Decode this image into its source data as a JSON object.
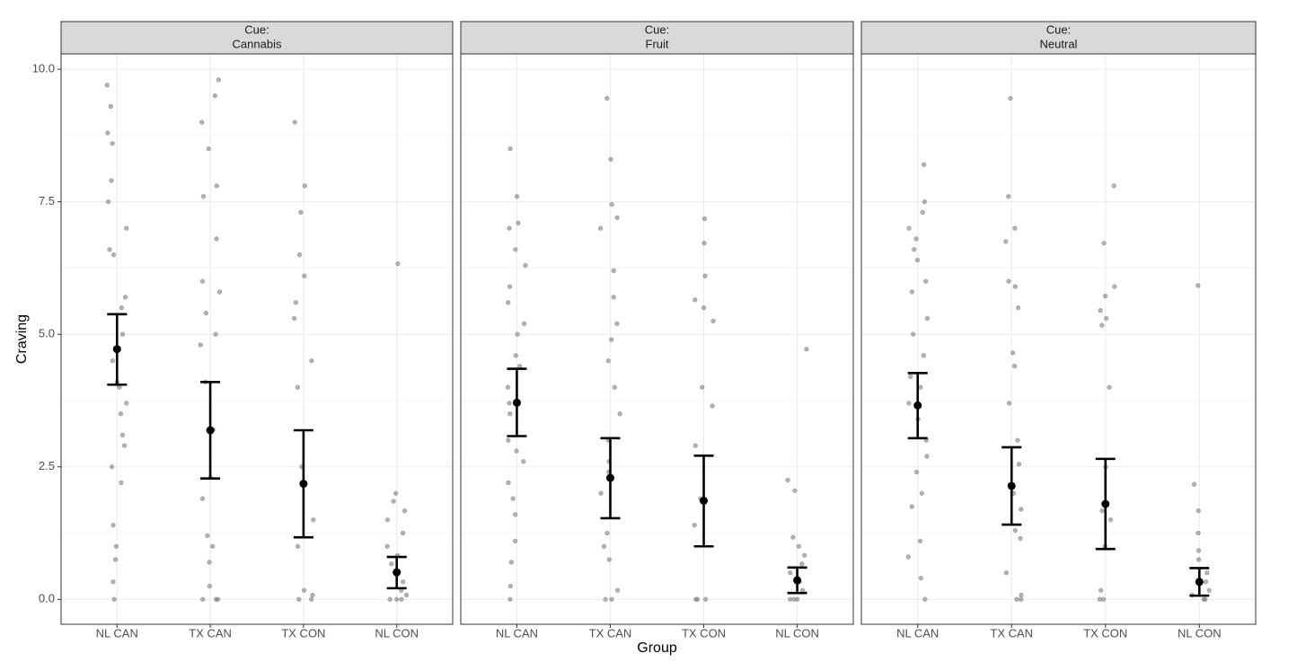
{
  "chart_data": [
    {
      "type": "strip",
      "facet_label": "Cue:",
      "facet_value": "Cannabis",
      "y_label": "Craving",
      "categories": [
        "NL CAN",
        "TX CAN",
        "TX CON",
        "NL CON"
      ],
      "points": [
        [
          9.7,
          9.3,
          8.8,
          8.6,
          7.9,
          7.5,
          7.0,
          6.6,
          6.5,
          5.7,
          5.5,
          5.0,
          4.7,
          4.5,
          4.1,
          4.0,
          3.7,
          3.5,
          3.1,
          2.9,
          2.5,
          2.2,
          1.4,
          1.0,
          0.75,
          0.33,
          0
        ],
        [
          9.8,
          9.5,
          9.0,
          8.5,
          7.8,
          7.6,
          6.8,
          6.0,
          5.8,
          5.4,
          5.0,
          4.8,
          4.1,
          3.2,
          2.3,
          1.9,
          1.2,
          1.0,
          0.7,
          0.25,
          0,
          0,
          0
        ],
        [
          9.0,
          7.8,
          7.3,
          6.5,
          6.1,
          5.6,
          5.3,
          4.5,
          4.0,
          2.5,
          1.5,
          1.0,
          0.17,
          0.08,
          0,
          0
        ],
        [
          6.33,
          2.0,
          1.85,
          1.67,
          1.5,
          1.25,
          1.0,
          0.83,
          0.67,
          0.5,
          0.33,
          0.17,
          0.08,
          0,
          0,
          0
        ]
      ],
      "means": [
        4.72,
        3.19,
        2.18,
        0.51
      ],
      "ci_low": [
        4.05,
        2.28,
        1.17,
        0.21
      ],
      "ci_high": [
        5.38,
        4.1,
        3.19,
        0.8
      ],
      "point_color": "#7f7f7f",
      "mean_color": "#000000",
      "ylim": [
        -0.47,
        10.29
      ],
      "yticks": [
        {
          "value": 0,
          "label": "0.0"
        },
        2.5,
        {
          "value": 5,
          "label": "5.0"
        },
        7.5,
        {
          "value": 10,
          "label": "10.0"
        }
      ],
      "minor_yticks": [
        1.25,
        3.75,
        6.25,
        8.75
      ],
      "grid": true,
      "show_y_axis": true
    },
    {
      "type": "strip",
      "facet_label": "Cue:",
      "facet_value": "Fruit",
      "x_label": "Group",
      "categories": [
        "NL CAN",
        "TX CAN",
        "TX CON",
        "NL CON"
      ],
      "points": [
        [
          8.5,
          7.6,
          7.1,
          7.0,
          6.6,
          6.3,
          5.9,
          5.6,
          5.2,
          5.0,
          4.6,
          4.4,
          4.0,
          3.7,
          3.5,
          3.0,
          2.8,
          2.6,
          2.2,
          1.9,
          1.6,
          1.1,
          0.7,
          0.25,
          0
        ],
        [
          9.45,
          8.3,
          7.45,
          7.2,
          7.0,
          6.2,
          5.7,
          5.2,
          4.9,
          4.5,
          4.0,
          3.5,
          3.0,
          2.6,
          2.4,
          2.0,
          1.25,
          1.0,
          0.75,
          0.17,
          0,
          0
        ],
        [
          7.18,
          6.72,
          6.1,
          5.65,
          5.5,
          5.25,
          4.0,
          3.65,
          2.9,
          1.9,
          1.4,
          0,
          0,
          0
        ],
        [
          4.72,
          2.25,
          2.05,
          1.17,
          1.0,
          0.83,
          0.67,
          0.5,
          0.33,
          0.17,
          0,
          0,
          0
        ]
      ],
      "means": [
        3.71,
        2.29,
        1.86,
        0.36
      ],
      "ci_low": [
        3.08,
        1.53,
        1.0,
        0.12
      ],
      "ci_high": [
        4.35,
        3.04,
        2.71,
        0.6
      ],
      "point_color": "#7f7f7f",
      "mean_color": "#000000",
      "ylim": [
        -0.47,
        10.29
      ],
      "yticks": [
        0,
        2.5,
        5,
        7.5,
        10
      ],
      "minor_yticks": [
        1.25,
        3.75,
        6.25,
        8.75
      ],
      "grid": true,
      "show_y_axis": false
    },
    {
      "type": "strip",
      "facet_label": "Cue:",
      "facet_value": "Neutral",
      "categories": [
        "NL CAN",
        "TX CAN",
        "TX CON",
        "NL CON"
      ],
      "points": [
        [
          8.2,
          7.5,
          7.3,
          7.0,
          6.8,
          6.6,
          6.4,
          6.0,
          5.8,
          5.3,
          5.0,
          4.6,
          4.2,
          4.0,
          3.7,
          3.4,
          3.0,
          2.7,
          2.4,
          2.0,
          1.75,
          1.1,
          0.8,
          0.4,
          0
        ],
        [
          9.45,
          7.6,
          7.0,
          6.75,
          6.0,
          5.9,
          5.5,
          4.65,
          4.4,
          3.7,
          3.0,
          2.55,
          2.0,
          1.7,
          1.3,
          1.15,
          0.5,
          0.08,
          0,
          0
        ],
        [
          7.8,
          6.72,
          5.9,
          5.72,
          5.45,
          5.3,
          5.17,
          4.0,
          2.5,
          1.67,
          1.5,
          1.0,
          0.17,
          0,
          0
        ],
        [
          5.92,
          2.17,
          1.67,
          1.25,
          0.92,
          0.75,
          0.5,
          0.33,
          0.17,
          0.08,
          0,
          0
        ]
      ],
      "means": [
        3.66,
        2.14,
        1.8,
        0.33
      ],
      "ci_low": [
        3.04,
        1.41,
        0.95,
        0.07
      ],
      "ci_high": [
        4.27,
        2.87,
        2.65,
        0.59
      ],
      "point_color": "#7f7f7f",
      "mean_color": "#000000",
      "ylim": [
        -0.47,
        10.29
      ],
      "yticks": [
        0,
        2.5,
        5,
        7.5,
        10
      ],
      "minor_yticks": [
        1.25,
        3.75,
        6.25,
        8.75
      ],
      "grid": true,
      "show_y_axis": false
    }
  ]
}
